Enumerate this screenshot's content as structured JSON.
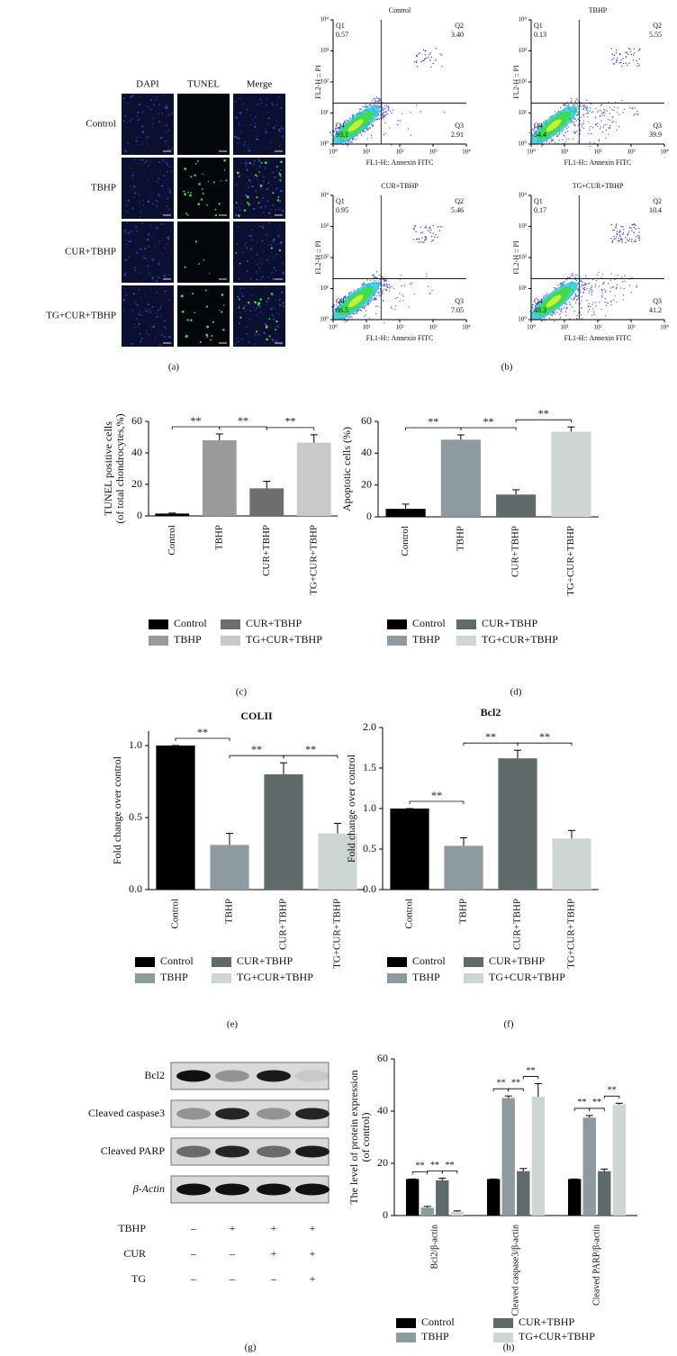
{
  "panel_labels": [
    "(a)",
    "(b)",
    "(c)",
    "(d)",
    "(e)",
    "(f)",
    "(g)",
    "(h)"
  ],
  "tunel": {
    "columns": [
      "DAPI",
      "TUNEL",
      "Merge"
    ],
    "rows": [
      "Control",
      "TBHP",
      "CUR+TBHP",
      "TG+CUR+TBHP"
    ]
  },
  "chart_data": [
    {
      "type": "scatter",
      "title": "Control",
      "xlabel": "FL1-H:: Annexin FITC",
      "ylabel": "FL2-H :: PI",
      "log_scale": true,
      "xlim": [
        1,
        10000
      ],
      "ylim": [
        1,
        10000
      ],
      "xticks": [
        {
          "value": 1,
          "label": "10⁰"
        },
        {
          "value": 10,
          "label": "10¹"
        },
        {
          "value": 100,
          "label": "10²"
        },
        {
          "value": 1000,
          "label": "10³"
        },
        {
          "value": 10000,
          "label": "10⁴"
        }
      ],
      "yticks": [
        {
          "value": 1,
          "label": "10⁰"
        },
        {
          "value": 10,
          "label": "10¹"
        },
        {
          "value": 100,
          "label": "10²"
        },
        {
          "value": 1000,
          "label": "10³"
        },
        {
          "value": 10000,
          "label": "10⁴"
        }
      ],
      "quadrants": [
        "Q1",
        "Q2",
        "Q3",
        "Q4"
      ],
      "values": [
        0.57,
        3.4,
        2.91,
        93.1
      ],
      "value_labels": [
        "0.57",
        "3.40",
        "2.91",
        "93.1"
      ]
    },
    {
      "type": "scatter",
      "title": "TBHP",
      "xlabel": "FL1-H:: Annexin FITC",
      "ylabel": "FL2-H :: PI",
      "log_scale": true,
      "xlim": [
        1,
        10000
      ],
      "ylim": [
        1,
        10000
      ],
      "xticks": [
        {
          "value": 1,
          "label": "10⁰"
        },
        {
          "value": 10,
          "label": "10¹"
        },
        {
          "value": 100,
          "label": "10²"
        },
        {
          "value": 1000,
          "label": "10³"
        },
        {
          "value": 10000,
          "label": "10⁴"
        }
      ],
      "yticks": [
        {
          "value": 1,
          "label": "10⁰"
        },
        {
          "value": 10,
          "label": "10¹"
        },
        {
          "value": 100,
          "label": "10²"
        },
        {
          "value": 1000,
          "label": "10³"
        },
        {
          "value": 10000,
          "label": "10⁴"
        }
      ],
      "quadrants": [
        "Q1",
        "Q2",
        "Q3",
        "Q4"
      ],
      "values": [
        0.13,
        5.55,
        39.9,
        54.4
      ],
      "value_labels": [
        "0.13",
        "5.55",
        "39.9",
        "54.4"
      ]
    },
    {
      "type": "scatter",
      "title": "CUR+TBHP",
      "xlabel": "FL1-H:: Annexin FITC",
      "ylabel": "FL2-H :: PI",
      "log_scale": true,
      "xlim": [
        1,
        10000
      ],
      "ylim": [
        1,
        10000
      ],
      "xticks": [
        {
          "value": 1,
          "label": "10⁰"
        },
        {
          "value": 10,
          "label": "10¹"
        },
        {
          "value": 100,
          "label": "10²"
        },
        {
          "value": 1000,
          "label": "10³"
        },
        {
          "value": 10000,
          "label": "10⁴"
        }
      ],
      "yticks": [
        {
          "value": 1,
          "label": "10⁰"
        },
        {
          "value": 10,
          "label": "10¹"
        },
        {
          "value": 100,
          "label": "10²"
        },
        {
          "value": 1000,
          "label": "10³"
        },
        {
          "value": 10000,
          "label": "10⁴"
        }
      ],
      "quadrants": [
        "Q1",
        "Q2",
        "Q3",
        "Q4"
      ],
      "values": [
        0.95,
        5.46,
        7.05,
        86.5
      ],
      "value_labels": [
        "0.95",
        "5.46",
        "7.05",
        "86.5"
      ]
    },
    {
      "type": "scatter",
      "title": "TG+CUR+TBHP",
      "xlabel": "FL1-H:: Annexin FITC",
      "ylabel": "FL2-H :: PI",
      "log_scale": true,
      "xlim": [
        1,
        10000
      ],
      "ylim": [
        1,
        10000
      ],
      "xticks": [
        {
          "value": 1,
          "label": "10⁰"
        },
        {
          "value": 10,
          "label": "10¹"
        },
        {
          "value": 100,
          "label": "10²"
        },
        {
          "value": 1000,
          "label": "10³"
        },
        {
          "value": 10000,
          "label": "10⁴"
        }
      ],
      "yticks": [
        {
          "value": 1,
          "label": "10⁰"
        },
        {
          "value": 10,
          "label": "10¹"
        },
        {
          "value": 100,
          "label": "10²"
        },
        {
          "value": 1000,
          "label": "10³"
        },
        {
          "value": 10000,
          "label": "10⁴"
        }
      ],
      "quadrants": [
        "Q1",
        "Q2",
        "Q3",
        "Q4"
      ],
      "values": [
        0.17,
        10.4,
        41.2,
        48.3
      ],
      "value_labels": [
        "0.17",
        "10.4",
        "41.2",
        "48.3"
      ]
    },
    {
      "type": "bar",
      "ylabel": [
        "TUNEL positive cells",
        "(of total chondrocytes,%)"
      ],
      "categories": [
        "Control",
        "TBHP",
        "CUR+TBHP",
        "TG+CUR+TBHP"
      ],
      "values": [
        1.5,
        48,
        17.5,
        46.5
      ],
      "errors": [
        0.3,
        4,
        4.5,
        5
      ],
      "colors": [
        "#000000",
        "#9a9a9a",
        "#6e6e6e",
        "#c9c9c9"
      ],
      "ylim": [
        0,
        60
      ],
      "yticks": [
        0,
        20,
        40,
        60
      ],
      "significance": [
        "**",
        "**",
        "**"
      ]
    },
    {
      "type": "bar",
      "ylabel": "Apoptotic cells (%)",
      "categories": [
        "Control",
        "TBHP",
        "CUR+TBHP",
        "TG+CUR+TBHP"
      ],
      "values": [
        5,
        48.5,
        14,
        53.5
      ],
      "errors": [
        3,
        3,
        3,
        3
      ],
      "colors": [
        "#000000",
        "#8d9ba1",
        "#5f6b6b",
        "#cdd5d5"
      ],
      "ylim": [
        0,
        60
      ],
      "yticks": [
        0,
        20,
        40,
        60
      ],
      "significance": [
        "**",
        "**",
        "**"
      ]
    },
    {
      "type": "bar",
      "title": "COLII",
      "ylabel": "Fold change over control",
      "categories": [
        "Control",
        "TBHP",
        "CUR+TBHP",
        "TG+CUR+TBHP"
      ],
      "values": [
        1.0,
        0.31,
        0.8,
        0.39
      ],
      "errors": [
        0,
        0.08,
        0.08,
        0.07
      ],
      "colors": [
        "#000000",
        "#8d9ba1",
        "#5f6b6b",
        "#cdd5d5"
      ],
      "ylim": [
        0,
        1.1
      ],
      "yticks": [
        {
          "value": 0,
          "label": "0.0"
        },
        {
          "value": 0.5,
          "label": "0.5"
        },
        {
          "value": 1,
          "label": "1.0"
        }
      ],
      "significance": [
        "**",
        "**",
        "**"
      ]
    },
    {
      "type": "bar",
      "title": "Bcl2",
      "ylabel": "Fold change over control",
      "categories": [
        "Control",
        "TBHP",
        "CUR+TBHP",
        "TG+CUR+TBHP"
      ],
      "values": [
        1.0,
        0.54,
        1.62,
        0.63
      ],
      "errors": [
        0,
        0.1,
        0.1,
        0.1
      ],
      "colors": [
        "#000000",
        "#8d9ba1",
        "#5f6b6b",
        "#cdd5d5"
      ],
      "ylim": [
        0,
        2
      ],
      "yticks": [
        {
          "value": 0,
          "label": "0.0"
        },
        {
          "value": 0.5,
          "label": "0.5"
        },
        {
          "value": 1,
          "label": "1.0"
        },
        {
          "value": 1.5,
          "label": "1.5"
        },
        {
          "value": 2,
          "label": "2.0"
        }
      ],
      "significance": [
        "**",
        "**",
        "**"
      ]
    },
    {
      "type": "bar",
      "ylabel": [
        "The level of protein expression",
        "(of control)"
      ],
      "categories": [
        "Bcl2/β-actin",
        "Cleaved caspase3/β-actin",
        "Cleaved PARP/β-actin"
      ],
      "series": [
        {
          "name": "Control",
          "color": "#000000",
          "values": [
            14,
            14,
            14
          ],
          "errors": [
            0,
            0,
            0
          ]
        },
        {
          "name": "TBHP",
          "color": "#8d9ba1",
          "values": [
            3,
            45,
            37.5
          ],
          "errors": [
            0.5,
            0.8,
            0.8
          ]
        },
        {
          "name": "CUR+TBHP",
          "color": "#5f6b6b",
          "values": [
            13.5,
            17,
            17
          ],
          "errors": [
            0.8,
            1,
            0.8
          ]
        },
        {
          "name": "TG+CUR+TBHP",
          "color": "#cdd5d5",
          "values": [
            1.5,
            45.5,
            42.5
          ],
          "errors": [
            0.3,
            5,
            0.5
          ]
        }
      ],
      "ylim": [
        0,
        60
      ],
      "yticks": [
        0,
        20,
        40,
        60
      ],
      "significance": [
        [
          "**",
          "**",
          "**"
        ],
        [
          "**",
          "**",
          "**"
        ],
        [
          "**",
          "**",
          "**"
        ]
      ]
    }
  ],
  "western_blot": {
    "proteins": [
      "Bcl2",
      "Cleaved caspase3",
      "Cleaved PARP",
      "β-Actin"
    ],
    "treatments": [
      {
        "name": "TBHP",
        "signs": [
          "–",
          "+",
          "+",
          "+"
        ]
      },
      {
        "name": "CUR",
        "signs": [
          "–",
          "–",
          "+",
          "+"
        ]
      },
      {
        "name": "TG",
        "signs": [
          "–",
          "–",
          "–",
          "+"
        ]
      }
    ]
  }
}
